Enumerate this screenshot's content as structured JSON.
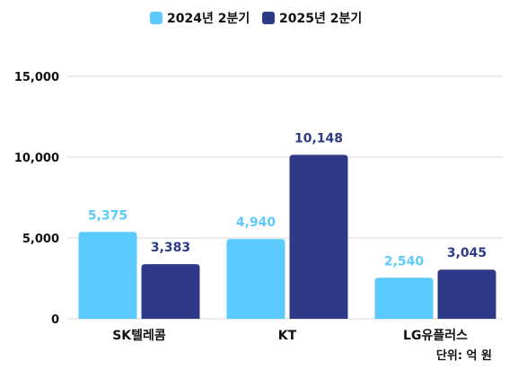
{
  "chart_data": {
    "type": "bar",
    "categories": [
      "SK텔레콤",
      "KT",
      "LG유플러스"
    ],
    "series": [
      {
        "name": "2024년 2분기",
        "color": "#5bcbff",
        "label_color": "#5bcbff",
        "values": [
          5375,
          4940,
          2540
        ]
      },
      {
        "name": "2025년 2분기",
        "color": "#2e3a87",
        "label_color": "#2e3a87",
        "values": [
          3383,
          10148,
          3045
        ]
      }
    ],
    "value_labels": [
      [
        "5,375",
        "4,940",
        "2,540"
      ],
      [
        "3,383",
        "10,148",
        "3,045"
      ]
    ],
    "yticks": [
      0,
      5000,
      10000,
      15000
    ],
    "ytick_labels": [
      "0",
      "5,000",
      "10,000",
      "15,000"
    ],
    "ylim": [
      0,
      15000
    ],
    "grid": true,
    "legend_position": "top-center",
    "unit_note": "단위: 억 원",
    "title": "",
    "xlabel": "",
    "ylabel": ""
  }
}
